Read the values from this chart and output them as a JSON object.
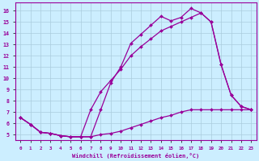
{
  "xlabel": "Windchill (Refroidissement éolien,°C)",
  "bg_color": "#cceeff",
  "line_color": "#990099",
  "grid_color": "#aaccdd",
  "x_ticks": [
    0,
    1,
    2,
    3,
    4,
    5,
    6,
    7,
    8,
    9,
    10,
    11,
    12,
    13,
    14,
    15,
    16,
    17,
    18,
    19,
    20,
    21,
    22,
    23
  ],
  "y_ticks": [
    5,
    6,
    7,
    8,
    9,
    10,
    11,
    12,
    13,
    14,
    15,
    16
  ],
  "xlim": [
    -0.5,
    23.5
  ],
  "ylim": [
    4.5,
    16.7
  ],
  "line1_x": [
    0,
    1,
    2,
    3,
    4,
    5,
    6,
    7,
    8,
    9,
    10,
    11,
    12,
    13,
    14,
    15,
    16,
    17,
    18,
    19,
    20,
    21,
    22,
    23
  ],
  "line1_y": [
    6.5,
    5.9,
    5.2,
    5.1,
    4.9,
    4.8,
    4.8,
    4.8,
    7.2,
    9.6,
    11.0,
    13.1,
    13.9,
    14.7,
    15.5,
    15.1,
    15.4,
    16.2,
    15.8,
    15.0,
    11.2,
    8.5,
    7.5,
    7.2
  ],
  "line2_x": [
    0,
    1,
    2,
    3,
    4,
    5,
    6,
    7,
    8,
    9,
    10,
    11,
    12,
    13,
    14,
    15,
    16,
    17,
    18,
    19,
    20,
    21,
    22,
    23
  ],
  "line2_y": [
    6.5,
    5.9,
    5.2,
    5.1,
    4.9,
    4.8,
    4.8,
    4.8,
    5.0,
    5.1,
    5.3,
    5.6,
    5.9,
    6.2,
    6.5,
    6.7,
    7.0,
    7.2,
    7.2,
    7.2,
    7.2,
    7.2,
    7.2,
    7.2
  ],
  "line3_x": [
    0,
    1,
    2,
    3,
    4,
    5,
    6,
    7,
    8,
    9,
    10,
    11,
    12,
    13,
    14,
    15,
    16,
    17,
    18,
    19,
    20,
    21,
    22,
    23
  ],
  "line3_y": [
    6.5,
    5.9,
    5.2,
    5.1,
    4.9,
    4.8,
    4.8,
    7.2,
    8.8,
    9.8,
    10.8,
    12.0,
    12.8,
    13.5,
    14.2,
    14.6,
    15.0,
    15.4,
    15.8,
    15.0,
    11.2,
    8.5,
    7.5,
    7.2
  ]
}
